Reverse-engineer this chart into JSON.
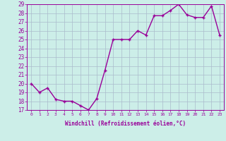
{
  "x": [
    0,
    1,
    2,
    3,
    4,
    5,
    6,
    7,
    8,
    9,
    10,
    11,
    12,
    13,
    14,
    15,
    16,
    17,
    18,
    19,
    20,
    21,
    22,
    23
  ],
  "y": [
    20,
    19,
    19.5,
    18.2,
    18,
    18,
    17.5,
    17,
    18.3,
    21.5,
    25,
    25,
    25,
    26,
    25.5,
    27.7,
    27.7,
    28.3,
    29,
    27.8,
    27.5,
    27.5,
    28.8,
    25.5
  ],
  "line_color": "#990099",
  "marker": "+",
  "bg_color": "#cceee8",
  "grid_color": "#aabbcc",
  "xlabel": "Windchill (Refroidissement éolien,°C)",
  "ylim": [
    17,
    29
  ],
  "xlim": [
    -0.5,
    23.5
  ],
  "yticks": [
    17,
    18,
    19,
    20,
    21,
    22,
    23,
    24,
    25,
    26,
    27,
    28,
    29
  ],
  "xticks": [
    0,
    1,
    2,
    3,
    4,
    5,
    6,
    7,
    8,
    9,
    10,
    11,
    12,
    13,
    14,
    15,
    16,
    17,
    18,
    19,
    20,
    21,
    22,
    23
  ]
}
